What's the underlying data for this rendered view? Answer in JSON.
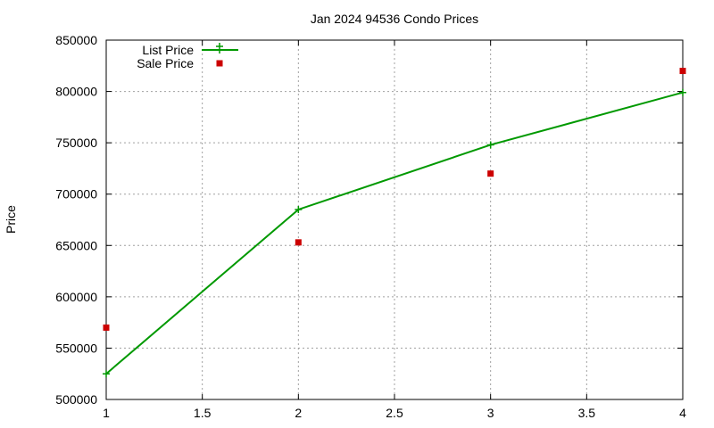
{
  "chart_data": {
    "type": "line",
    "title": "Jan 2024 94536 Condo Prices",
    "xlabel": "",
    "ylabel": "Price",
    "xlim": [
      1,
      4
    ],
    "ylim": [
      500000,
      850000
    ],
    "xticks": [
      "1",
      "1.5",
      "2",
      "2.5",
      "3",
      "3.5",
      "4"
    ],
    "yticks": [
      "500000",
      "550000",
      "600000",
      "650000",
      "700000",
      "750000",
      "800000",
      "850000"
    ],
    "xtick_values": [
      1,
      1.5,
      2,
      2.5,
      3,
      3.5,
      4
    ],
    "ytick_values": [
      500000,
      550000,
      600000,
      650000,
      700000,
      750000,
      800000,
      850000
    ],
    "grid": true,
    "legend_position": "top-left",
    "series": [
      {
        "name": "List Price",
        "style": "linespoints",
        "marker": "plus",
        "color": "#009900",
        "x": [
          1,
          2,
          3,
          4
        ],
        "y": [
          525000,
          685000,
          748000,
          799000
        ]
      },
      {
        "name": "Sale Price",
        "style": "points",
        "marker": "square",
        "color": "#cc0000",
        "x": [
          1,
          2,
          3,
          4
        ],
        "y": [
          570000,
          653000,
          720000,
          820000
        ]
      }
    ]
  }
}
